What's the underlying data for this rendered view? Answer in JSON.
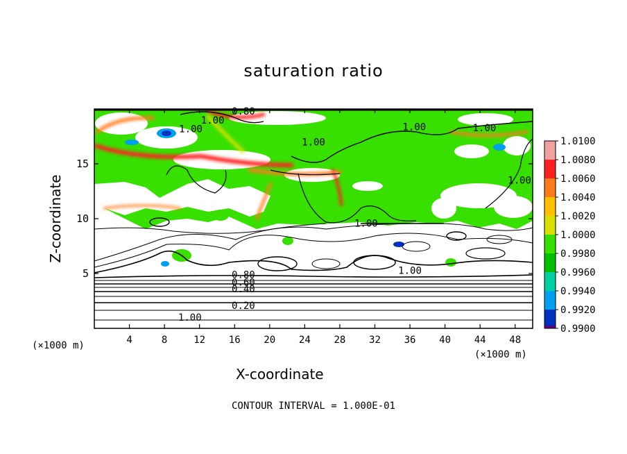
{
  "chart_data": {
    "type": "heatmap",
    "title": "saturation ratio",
    "xlabel": "X-coordinate",
    "ylabel": "Z-coordinate",
    "x_unit": "(×1000 m)",
    "footer": "CONTOUR INTERVAL = 1.000E-01",
    "xlim": [
      0,
      50
    ],
    "ylim": [
      0,
      20
    ],
    "x_ticks": [
      4,
      8,
      12,
      16,
      20,
      24,
      28,
      32,
      36,
      40,
      44,
      48
    ],
    "y_ticks": [
      5,
      10,
      15
    ],
    "colorbar": {
      "labels": [
        "1.0100",
        "1.0080",
        "1.0060",
        "1.0040",
        "1.0020",
        "1.0000",
        "0.9980",
        "0.9960",
        "0.9940",
        "0.9920",
        "0.9900"
      ],
      "colors": [
        "#f2a0a0",
        "#ff2020",
        "#ff7a1a",
        "#ffc000",
        "#d8e000",
        "#38e000",
        "#00c000",
        "#00d0a0",
        "#00a0f0",
        "#0030c0",
        "#600080"
      ]
    },
    "contour_labels": [
      {
        "text": "1.00",
        "x": 10.9,
        "y": 1.0
      },
      {
        "text": "0.80",
        "x": 17.0,
        "y": 4.9
      },
      {
        "text": "0.60",
        "x": 17.0,
        "y": 4.2
      },
      {
        "text": "0.40",
        "x": 17.0,
        "y": 3.6
      },
      {
        "text": "0.20",
        "x": 17.0,
        "y": 2.1
      },
      {
        "text": "1.00",
        "x": 36.0,
        "y": 5.3
      },
      {
        "text": "1.00",
        "x": 31.0,
        "y": 9.6
      },
      {
        "text": "1.00",
        "x": 11.0,
        "y": 18.2
      },
      {
        "text": "1.00",
        "x": 13.5,
        "y": 19.0
      },
      {
        "text": "0.80",
        "x": 17.0,
        "y": 19.8
      },
      {
        "text": "1.00",
        "x": 25.0,
        "y": 17.0
      },
      {
        "text": "1.00",
        "x": 36.5,
        "y": 18.4
      },
      {
        "text": "1.00",
        "x": 44.5,
        "y": 18.3
      },
      {
        "text": "1.00",
        "x": 48.5,
        "y": 13.5
      }
    ]
  }
}
